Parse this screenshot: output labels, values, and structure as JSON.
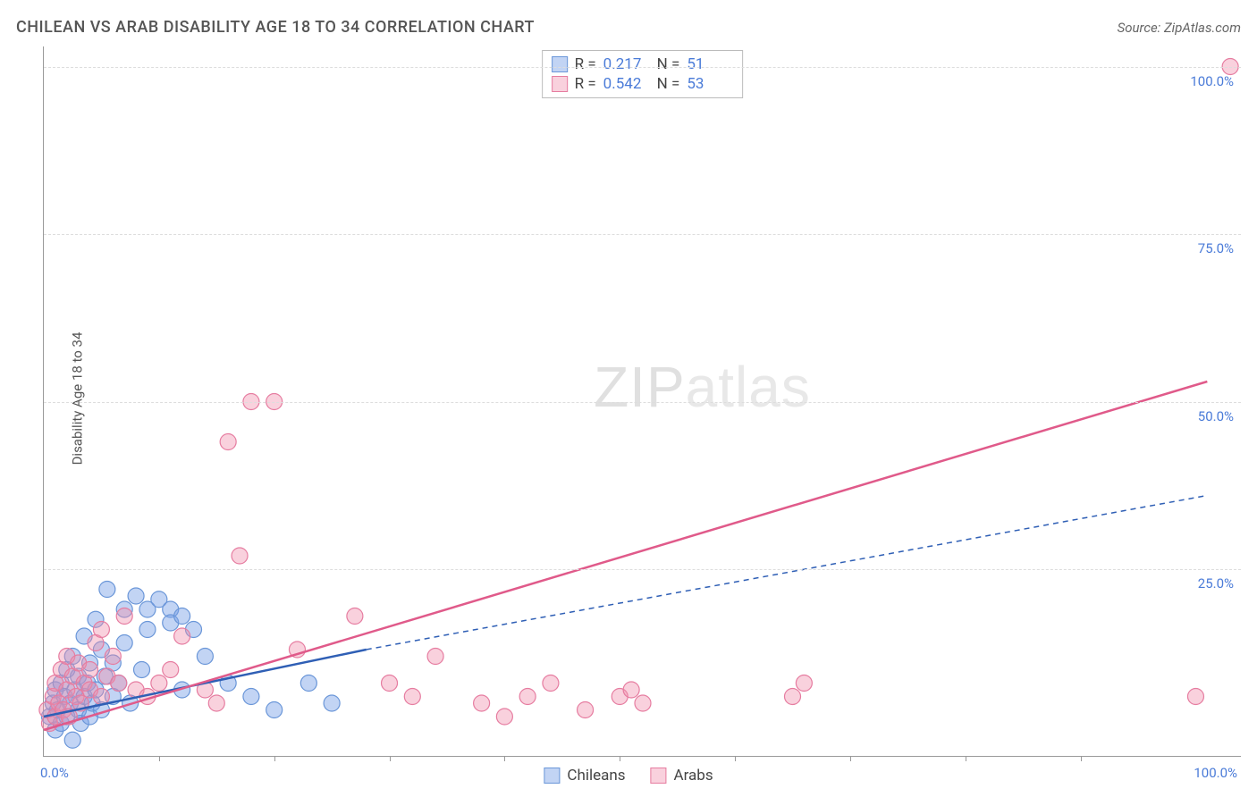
{
  "header": {
    "title": "CHILEAN VS ARAB DISABILITY AGE 18 TO 34 CORRELATION CHART",
    "source": "Source: ZipAtlas.com"
  },
  "chart": {
    "type": "scatter",
    "ylabel": "Disability Age 18 to 34",
    "xlim": [
      0,
      104
    ],
    "ylim": [
      -3,
      103
    ],
    "yticks": [
      {
        "v": 25,
        "label": "25.0%"
      },
      {
        "v": 50,
        "label": "50.0%"
      },
      {
        "v": 75,
        "label": "75.0%"
      },
      {
        "v": 100,
        "label": "100.0%"
      }
    ],
    "xticks_minor": [
      10,
      20,
      30,
      40,
      50,
      60,
      70,
      80,
      90
    ],
    "xticks_labels": [
      {
        "v": 0,
        "label": "0.0%"
      },
      {
        "v": 100,
        "label": "100.0%"
      }
    ],
    "grid_color": "#dddddd",
    "axis_color": "#999999",
    "background_color": "#ffffff",
    "label_color": "#4a7bd8",
    "watermark": {
      "zip": "ZIP",
      "atlas": "atlas"
    },
    "series": [
      {
        "name": "Chileans",
        "color_fill": "rgba(120,160,230,0.45)",
        "color_stroke": "#6a96d8",
        "marker_radius": 9,
        "trend": {
          "x1": 0,
          "y1": 3,
          "x2": 28,
          "y2": 13,
          "dash_x2": 101,
          "dash_y2": 36,
          "color": "#2f5fb5",
          "width": 2.5,
          "dash": "6,5"
        },
        "points": [
          [
            0.5,
            3
          ],
          [
            0.8,
            5
          ],
          [
            1,
            1
          ],
          [
            1,
            7
          ],
          [
            1.2,
            4
          ],
          [
            1.5,
            2
          ],
          [
            1.5,
            8
          ],
          [
            1.8,
            6
          ],
          [
            2,
            3
          ],
          [
            2,
            10
          ],
          [
            2.3,
            5
          ],
          [
            2.5,
            -0.5
          ],
          [
            2.5,
            12
          ],
          [
            2.7,
            7
          ],
          [
            3,
            4
          ],
          [
            3,
            9
          ],
          [
            3.2,
            2
          ],
          [
            3.5,
            15
          ],
          [
            3.5,
            6
          ],
          [
            3.8,
            8
          ],
          [
            4,
            3
          ],
          [
            4,
            11
          ],
          [
            4.2,
            5
          ],
          [
            4.5,
            17.5
          ],
          [
            4.5,
            7
          ],
          [
            5,
            4
          ],
          [
            5,
            13
          ],
          [
            5.3,
            9
          ],
          [
            5.5,
            22
          ],
          [
            6,
            6
          ],
          [
            6,
            11
          ],
          [
            6.5,
            8
          ],
          [
            7,
            14
          ],
          [
            7,
            19
          ],
          [
            7.5,
            5
          ],
          [
            8,
            21
          ],
          [
            8.5,
            10
          ],
          [
            9,
            19
          ],
          [
            9,
            16
          ],
          [
            10,
            20.5
          ],
          [
            11,
            19
          ],
          [
            11,
            17
          ],
          [
            12,
            18
          ],
          [
            12,
            7
          ],
          [
            13,
            16
          ],
          [
            14,
            12
          ],
          [
            16,
            8
          ],
          [
            18,
            6
          ],
          [
            20,
            4
          ],
          [
            23,
            8
          ],
          [
            25,
            5
          ]
        ]
      },
      {
        "name": "Arabs",
        "color_fill": "rgba(240,140,170,0.40)",
        "color_stroke": "#e67ca0",
        "marker_radius": 9,
        "trend": {
          "x1": 0,
          "y1": 1,
          "x2": 101,
          "y2": 53,
          "color": "#e05a8a",
          "width": 2.5
        },
        "points": [
          [
            0.3,
            4
          ],
          [
            0.5,
            2
          ],
          [
            0.8,
            6
          ],
          [
            1,
            3
          ],
          [
            1,
            8
          ],
          [
            1.3,
            5
          ],
          [
            1.5,
            10
          ],
          [
            1.7,
            4
          ],
          [
            2,
            7
          ],
          [
            2,
            12
          ],
          [
            2.2,
            3
          ],
          [
            2.5,
            9
          ],
          [
            2.8,
            6
          ],
          [
            3,
            11
          ],
          [
            3.2,
            5
          ],
          [
            3.5,
            8
          ],
          [
            4,
            10
          ],
          [
            4,
            7
          ],
          [
            4.5,
            14
          ],
          [
            5,
            6
          ],
          [
            5,
            16
          ],
          [
            5.5,
            9
          ],
          [
            6,
            12
          ],
          [
            6.5,
            8
          ],
          [
            7,
            18
          ],
          [
            8,
            7
          ],
          [
            9,
            6
          ],
          [
            10,
            8
          ],
          [
            11,
            10
          ],
          [
            12,
            15
          ],
          [
            14,
            7
          ],
          [
            15,
            5
          ],
          [
            16,
            44
          ],
          [
            17,
            27
          ],
          [
            18,
            50
          ],
          [
            20,
            50
          ],
          [
            22,
            13
          ],
          [
            27,
            18
          ],
          [
            30,
            8
          ],
          [
            32,
            6
          ],
          [
            34,
            12
          ],
          [
            38,
            5
          ],
          [
            40,
            3
          ],
          [
            42,
            6
          ],
          [
            44,
            8
          ],
          [
            47,
            4
          ],
          [
            50,
            6
          ],
          [
            51,
            7
          ],
          [
            52,
            5
          ],
          [
            65,
            6
          ],
          [
            66,
            8
          ],
          [
            100,
            6
          ],
          [
            103,
            100
          ]
        ]
      }
    ],
    "stats": [
      {
        "swatch_fill": "rgba(120,160,230,0.45)",
        "swatch_stroke": "#6a96d8",
        "r": "0.217",
        "n": "51"
      },
      {
        "swatch_fill": "rgba(240,140,170,0.40)",
        "swatch_stroke": "#e67ca0",
        "r": "0.542",
        "n": "53"
      }
    ],
    "legend": [
      {
        "swatch_fill": "rgba(120,160,230,0.45)",
        "swatch_stroke": "#6a96d8",
        "label": "Chileans"
      },
      {
        "swatch_fill": "rgba(240,140,170,0.40)",
        "swatch_stroke": "#e67ca0",
        "label": "Arabs"
      }
    ]
  }
}
